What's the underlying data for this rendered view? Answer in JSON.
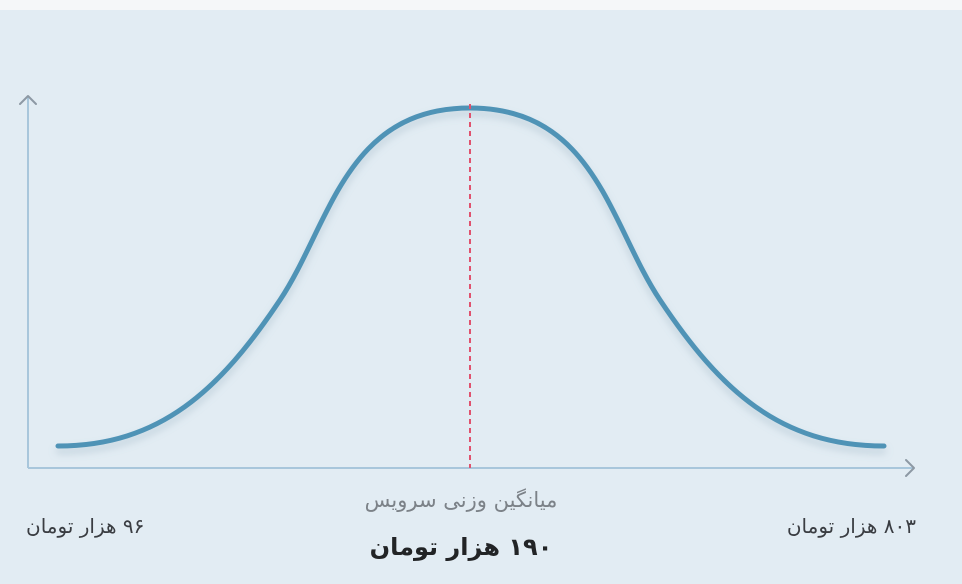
{
  "chart_data": {
    "type": "line",
    "title": "",
    "xlabel": "",
    "ylabel": "",
    "grid": false,
    "distribution": "normal-curve",
    "min_label": "۹۶ هزار تومان",
    "max_label": "۸۰۳ هزار تومان",
    "mean_caption": "میانگین وزنی سرویس",
    "mean_label": "۱۹۰ هزار تومان",
    "mean_marker_style": "dashed",
    "colors": {
      "curve": "#4f93b6",
      "mean_line": "#e0526e",
      "axis": "#a8c6db",
      "axis_arrow": "#8d99a4",
      "background": "#e2ecf3"
    }
  }
}
